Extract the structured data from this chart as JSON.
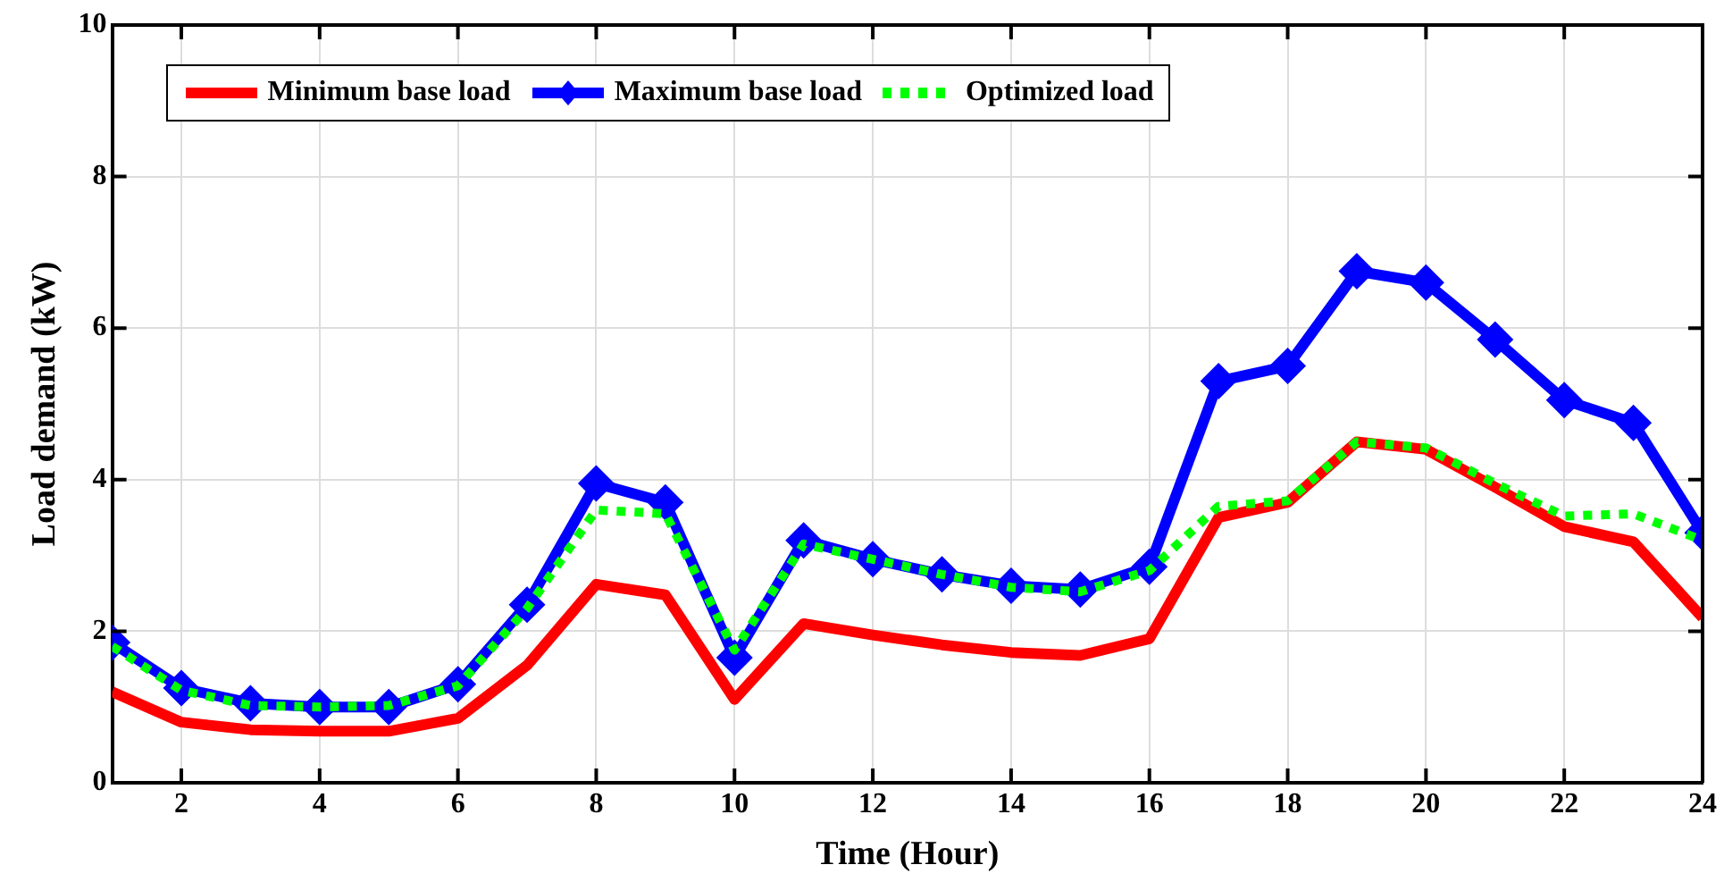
{
  "chart_data": {
    "type": "line",
    "xlabel": "Time (Hour)",
    "ylabel": "Load demand (kW)",
    "x": [
      1,
      2,
      3,
      4,
      5,
      6,
      7,
      8,
      9,
      10,
      11,
      12,
      13,
      14,
      15,
      16,
      17,
      18,
      19,
      20,
      21,
      22,
      23,
      24
    ],
    "series": [
      {
        "name": "Minimum base load",
        "color": "#ff0000",
        "marker": "none",
        "line_style": "solid",
        "values": [
          1.2,
          0.8,
          0.7,
          0.68,
          0.68,
          0.85,
          1.55,
          2.62,
          2.48,
          1.1,
          2.1,
          1.95,
          1.82,
          1.72,
          1.68,
          1.9,
          3.5,
          3.7,
          4.5,
          4.4,
          3.9,
          3.38,
          3.18,
          2.18
        ]
      },
      {
        "name": "Maximum base load",
        "color": "#0000ff",
        "marker": "diamond",
        "line_style": "solid",
        "values": [
          1.85,
          1.25,
          1.05,
          1.0,
          1.0,
          1.3,
          2.35,
          3.95,
          3.7,
          1.65,
          3.2,
          2.95,
          2.75,
          2.6,
          2.55,
          2.85,
          5.3,
          5.5,
          6.75,
          6.6,
          5.85,
          5.05,
          4.75,
          3.3
        ]
      },
      {
        "name": "Optimized load",
        "color": "#00ff00",
        "marker": "none",
        "line_style": "dotted",
        "values": [
          1.8,
          1.22,
          1.02,
          1.0,
          1.02,
          1.28,
          2.3,
          3.6,
          3.55,
          1.75,
          3.15,
          2.95,
          2.75,
          2.58,
          2.52,
          2.8,
          3.65,
          3.72,
          4.5,
          4.42,
          3.95,
          3.52,
          3.55,
          3.2
        ]
      }
    ],
    "xlim": [
      1,
      24
    ],
    "xticks": [
      2,
      4,
      6,
      8,
      10,
      12,
      14,
      16,
      18,
      20,
      22,
      24
    ],
    "ylim": [
      0,
      10
    ],
    "yticks": [
      0,
      2,
      4,
      6,
      8,
      10
    ],
    "grid": true,
    "legend": "top left"
  }
}
